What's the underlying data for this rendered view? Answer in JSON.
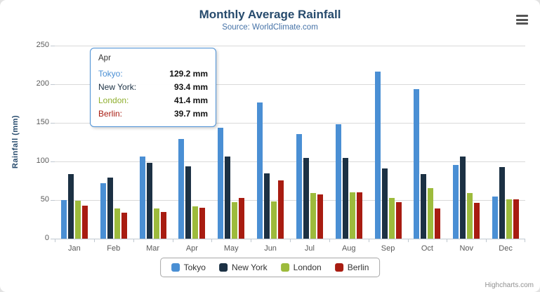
{
  "chart": {
    "credits": "Highcharts.com"
  },
  "tooltip": {
    "header": "Apr",
    "rows": [
      {
        "name": "Tokyo:",
        "value": "129.2 mm",
        "color": "#4a8fd4"
      },
      {
        "name": "New York:",
        "value": "93.4 mm",
        "color": "#1c3144"
      },
      {
        "name": "London:",
        "value": "41.4 mm",
        "color": "#8faf2e"
      },
      {
        "name": "Berlin:",
        "value": "39.7 mm",
        "color": "#a81c11"
      }
    ],
    "border_color": "#4a8fd4"
  },
  "chart_data": {
    "type": "bar",
    "title": "Monthly Average Rainfall",
    "subtitle": "Source: WorldClimate.com",
    "ylabel": "Rainfall (mm)",
    "ylim": [
      0,
      250
    ],
    "yticks": [
      0,
      50,
      100,
      150,
      200,
      250
    ],
    "categories": [
      "Jan",
      "Feb",
      "Mar",
      "Apr",
      "May",
      "Jun",
      "Jul",
      "Aug",
      "Sep",
      "Oct",
      "Nov",
      "Dec"
    ],
    "series": [
      {
        "name": "Tokyo",
        "color": "#4a8fd4",
        "values": [
          49.9,
          71.5,
          106.4,
          129.2,
          144.0,
          176.0,
          135.6,
          148.5,
          216.4,
          194.1,
          95.6,
          54.4
        ]
      },
      {
        "name": "New York",
        "color": "#1c3144",
        "values": [
          83.6,
          78.8,
          98.5,
          93.4,
          106.0,
          84.5,
          105.0,
          104.3,
          91.2,
          83.5,
          106.6,
          92.3
        ]
      },
      {
        "name": "London",
        "color": "#9dbb3c",
        "values": [
          48.9,
          38.8,
          39.3,
          41.4,
          47.0,
          48.3,
          59.0,
          59.6,
          52.4,
          65.2,
          59.3,
          51.2
        ]
      },
      {
        "name": "Berlin",
        "color": "#a81c11",
        "values": [
          42.4,
          33.2,
          34.5,
          39.7,
          52.6,
          75.5,
          57.4,
          60.4,
          47.6,
          39.1,
          46.8,
          51.1
        ]
      }
    ],
    "legend_position": "bottom",
    "grid": true
  }
}
